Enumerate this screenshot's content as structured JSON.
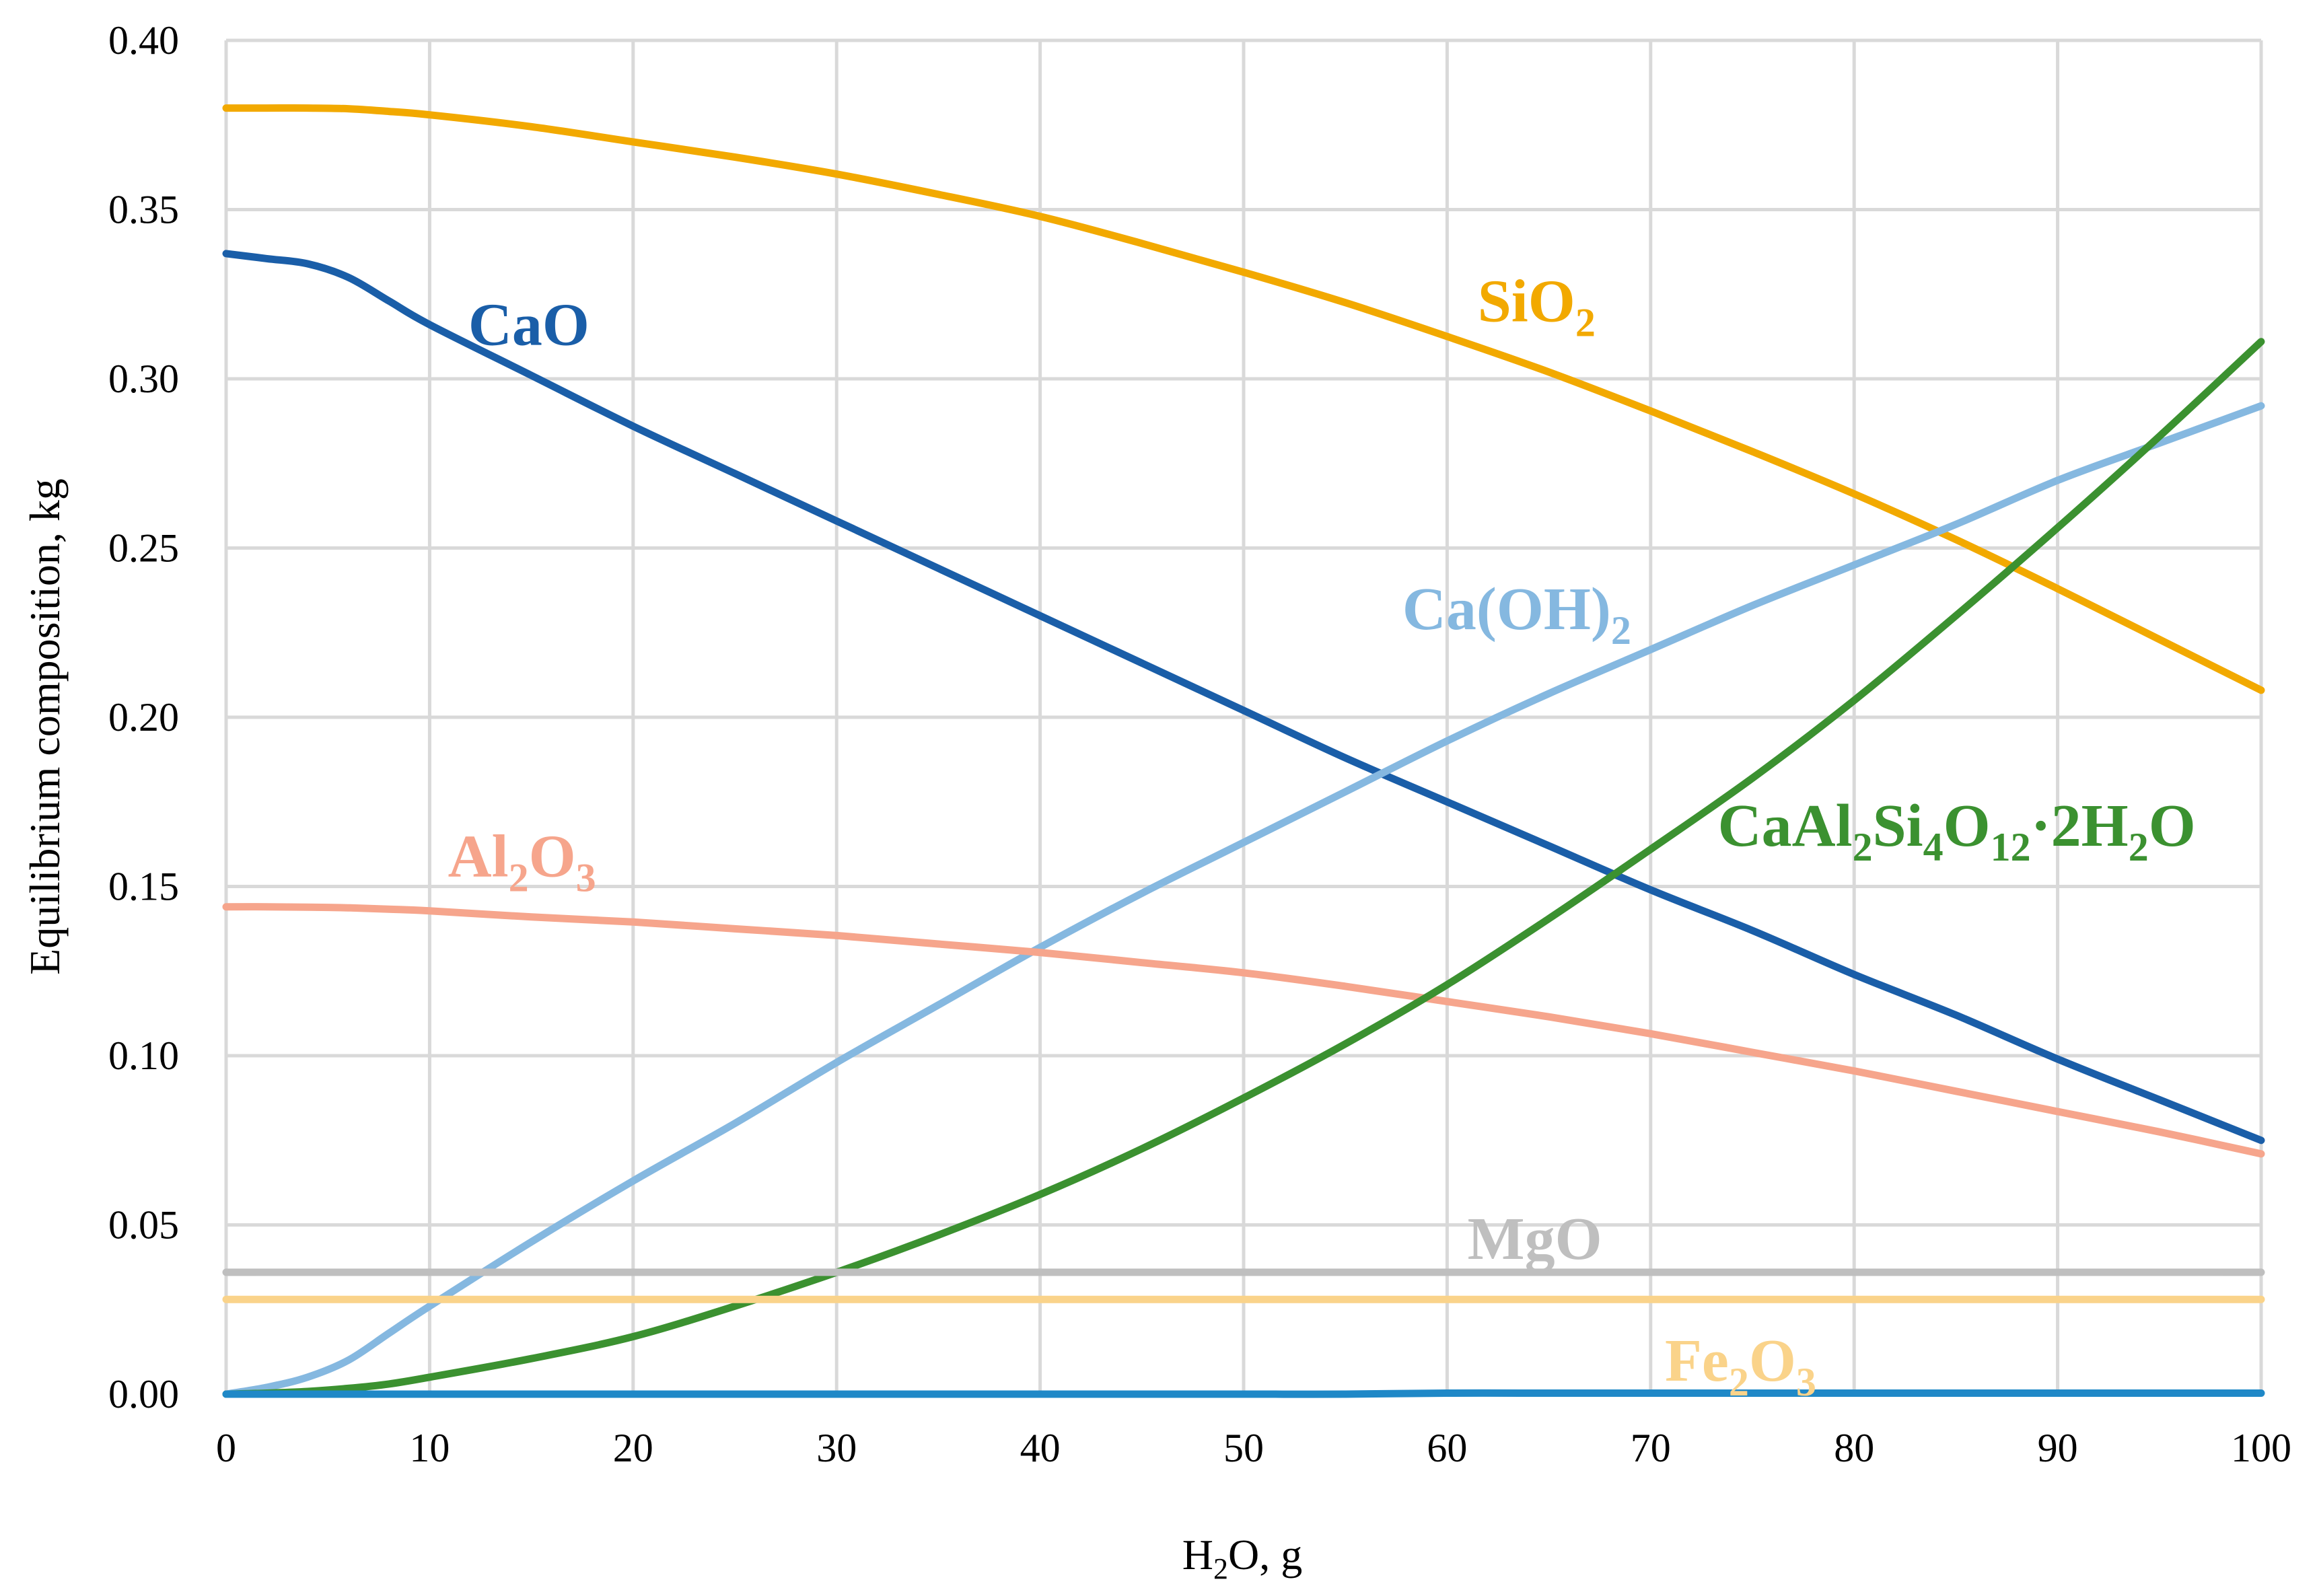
{
  "chart_data": {
    "type": "line",
    "title": "",
    "xlabel": {
      "prefix": "H",
      "sub": "2",
      "suffix": "O, g"
    },
    "ylabel": "Equilibrium composition, kg",
    "xlim": [
      0,
      100
    ],
    "ylim": [
      0,
      0.4
    ],
    "xticks": [
      0,
      10,
      20,
      30,
      40,
      50,
      60,
      70,
      80,
      90,
      100
    ],
    "yticks": [
      0.0,
      0.05,
      0.1,
      0.15,
      0.2,
      0.25,
      0.3,
      0.35,
      0.4
    ],
    "xtick_labels": [
      "0",
      "10",
      "20",
      "30",
      "40",
      "50",
      "60",
      "70",
      "80",
      "90",
      "100"
    ],
    "ytick_labels": [
      "0.00",
      "0.05",
      "0.10",
      "0.15",
      "0.20",
      "0.25",
      "0.30",
      "0.35",
      "0.40"
    ],
    "grid": true,
    "x": [
      0,
      2,
      4,
      6,
      8,
      10,
      15,
      20,
      25,
      30,
      35,
      40,
      45,
      50,
      55,
      60,
      65,
      70,
      75,
      80,
      85,
      90,
      95,
      100
    ],
    "series": [
      {
        "id": "sio2",
        "name": "SiO2",
        "color": "#f2a900",
        "label_parts": [
          {
            "t": "SiO"
          },
          {
            "t": "2",
            "sub": true
          }
        ],
        "label_pos": [
          61.5,
          0.317
        ],
        "values": [
          0.38,
          0.38,
          0.38,
          0.3798,
          0.379,
          0.378,
          0.3745,
          0.37,
          0.3655,
          0.3605,
          0.3545,
          0.348,
          0.34,
          0.3315,
          0.3225,
          0.3125,
          0.302,
          0.2905,
          0.2785,
          0.266,
          0.2525,
          0.238,
          0.223,
          0.208
        ]
      },
      {
        "id": "cao",
        "name": "CaO",
        "color": "#1a5ea8",
        "label_parts": [
          {
            "t": "CaO"
          }
        ],
        "label_pos": [
          11.9,
          0.31
        ],
        "values": [
          0.337,
          0.3355,
          0.334,
          0.33,
          0.323,
          0.316,
          0.301,
          0.286,
          0.272,
          0.258,
          0.244,
          0.23,
          0.216,
          0.202,
          0.188,
          0.175,
          0.162,
          0.149,
          0.137,
          0.124,
          0.112,
          0.099,
          0.087,
          0.075
        ]
      },
      {
        "id": "caoh2",
        "name": "Ca(OH)2",
        "color": "#85b8e0",
        "label_parts": [
          {
            "t": "Ca(OH)"
          },
          {
            "t": "2",
            "sub": true
          }
        ],
        "label_pos": [
          57.8,
          0.226
        ],
        "values": [
          0.0,
          0.002,
          0.005,
          0.01,
          0.018,
          0.026,
          0.045,
          0.063,
          0.08,
          0.098,
          0.115,
          0.132,
          0.148,
          0.163,
          0.178,
          0.193,
          0.207,
          0.22,
          0.233,
          0.245,
          0.257,
          0.27,
          0.281,
          0.292
        ]
      },
      {
        "id": "al2o3",
        "name": "Al2O3",
        "color": "#f6a58c",
        "label_parts": [
          {
            "t": "Al"
          },
          {
            "t": "2",
            "sub": true
          },
          {
            "t": "O"
          },
          {
            "t": "3",
            "sub": true
          }
        ],
        "label_pos": [
          10.9,
          0.153
        ],
        "values": [
          0.144,
          0.144,
          0.1439,
          0.1437,
          0.1433,
          0.1428,
          0.141,
          0.1395,
          0.1375,
          0.1355,
          0.133,
          0.1305,
          0.1275,
          0.1245,
          0.1205,
          0.116,
          0.1115,
          0.1065,
          0.101,
          0.0955,
          0.0895,
          0.0835,
          0.0775,
          0.071
        ]
      },
      {
        "id": "caal2si4o12",
        "name": "CaAl2Si4O12·2H2O",
        "color": "#3b9130",
        "label_parts": [
          {
            "t": "CaAl"
          },
          {
            "t": "2",
            "sub": true
          },
          {
            "t": "Si"
          },
          {
            "t": "4",
            "sub": true
          },
          {
            "t": "O"
          },
          {
            "t": "12",
            "sub": true
          },
          {
            "t": "·2H"
          },
          {
            "t": "2",
            "sub": true
          },
          {
            "t": "O"
          }
        ],
        "label_pos": [
          73.3,
          0.162
        ],
        "values": [
          0.0,
          0.0003,
          0.0008,
          0.0017,
          0.003,
          0.005,
          0.0105,
          0.017,
          0.026,
          0.036,
          0.047,
          0.059,
          0.0725,
          0.0875,
          0.1035,
          0.121,
          0.1405,
          0.161,
          0.182,
          0.205,
          0.23,
          0.256,
          0.283,
          0.311
        ]
      },
      {
        "id": "mgo",
        "name": "MgO",
        "color": "#bfbfbf",
        "label_parts": [
          {
            "t": "MgO"
          }
        ],
        "label_pos": [
          61.0,
          0.04
        ],
        "values": [
          0.036,
          0.036,
          0.036,
          0.036,
          0.036,
          0.036,
          0.036,
          0.036,
          0.036,
          0.036,
          0.036,
          0.036,
          0.036,
          0.036,
          0.036,
          0.036,
          0.036,
          0.036,
          0.036,
          0.036,
          0.036,
          0.036,
          0.036,
          0.036
        ]
      },
      {
        "id": "fe2o3",
        "name": "Fe2O3",
        "color": "#fad38a",
        "label_parts": [
          {
            "t": "Fe"
          },
          {
            "t": "2",
            "sub": true
          },
          {
            "t": "O"
          },
          {
            "t": "3",
            "sub": true
          }
        ],
        "label_pos": [
          70.7,
          0.004
        ],
        "values": [
          0.028,
          0.028,
          0.028,
          0.028,
          0.028,
          0.028,
          0.028,
          0.028,
          0.028,
          0.028,
          0.028,
          0.028,
          0.028,
          0.028,
          0.028,
          0.028,
          0.028,
          0.028,
          0.028,
          0.028,
          0.028,
          0.028,
          0.028,
          0.028
        ]
      },
      {
        "id": "baseline",
        "name": "",
        "color": "#1f88c7",
        "label_parts": [],
        "label_pos": null,
        "values": [
          0.0,
          0.0,
          0.0,
          0.0,
          0.0,
          0.0,
          0.0,
          0.0,
          0.0,
          0.0,
          0.0,
          0.0,
          0.0,
          0.0,
          0.0,
          0.0003,
          0.0003,
          0.0003,
          0.0003,
          0.0003,
          0.0003,
          0.0003,
          0.0003,
          0.0003
        ]
      }
    ]
  }
}
